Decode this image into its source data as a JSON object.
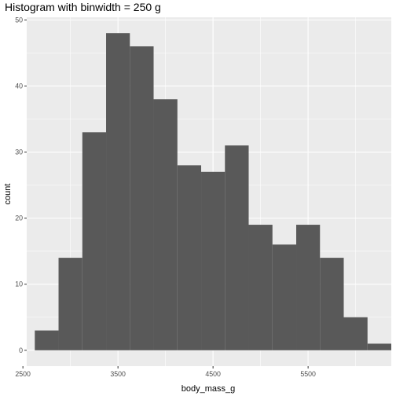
{
  "chart_data": {
    "type": "bar",
    "title": "Histogram with binwidth = 250 g",
    "xlabel": "body_mass_g",
    "ylabel": "count",
    "bin_width": 250,
    "bin_centers": [
      2750,
      3000,
      3250,
      3500,
      3750,
      4000,
      4250,
      4500,
      4750,
      5000,
      5250,
      5500,
      5750,
      6000,
      6250
    ],
    "values": [
      3,
      14,
      33,
      48,
      46,
      38,
      28,
      27,
      31,
      19,
      16,
      19,
      14,
      5,
      1
    ],
    "xlim": [
      2540,
      6375
    ],
    "ylim": [
      -2.4,
      50.4
    ],
    "x_ticks": [
      2500,
      3500,
      4500,
      5500
    ],
    "x_tick_labels": [
      "2500",
      "3500",
      "4500",
      "5500"
    ],
    "y_ticks": [
      0,
      10,
      20,
      30,
      40,
      50
    ],
    "y_tick_labels": [
      "0",
      "10",
      "20",
      "30",
      "40",
      "50"
    ],
    "grid": true,
    "bar_color": "#595959",
    "panel_color": "#ebebeb",
    "grid_color": "#ffffff"
  }
}
